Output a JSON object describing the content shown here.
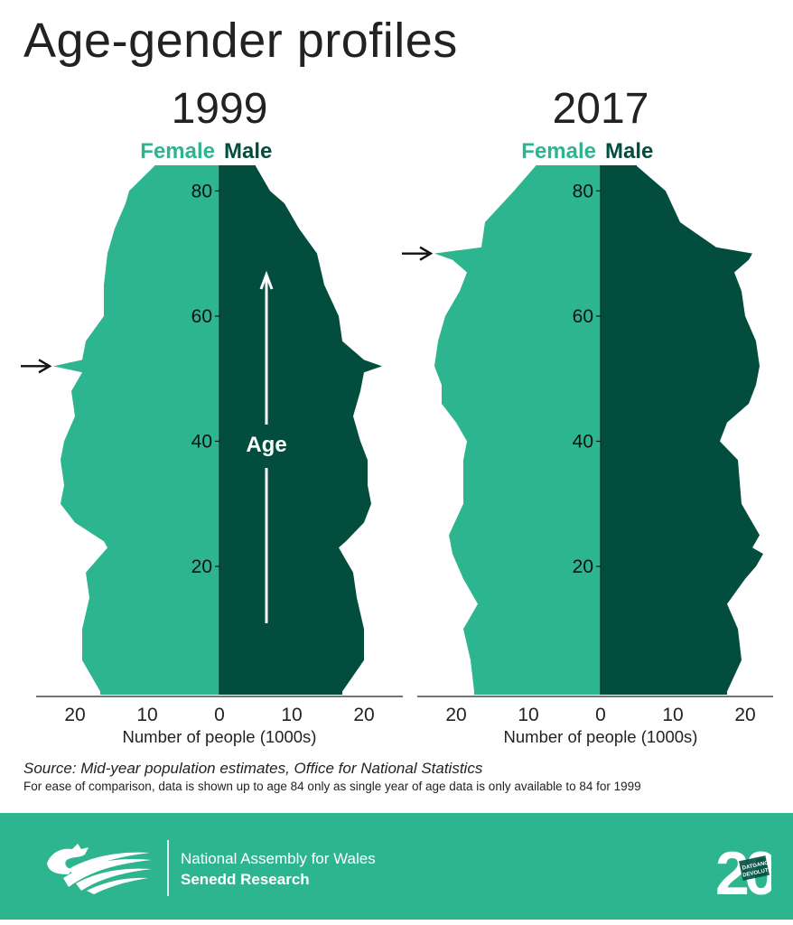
{
  "title": "Age-gender profiles",
  "colors": {
    "female": "#2db58f",
    "male": "#034d3f",
    "footer": "#2db58f",
    "text": "#222222"
  },
  "chart_data": [
    {
      "type": "bar",
      "orientation": "horizontal-population-pyramid",
      "title": "1999",
      "legend": [
        "Female",
        "Male"
      ],
      "xlabel": "Number of people (1000s)",
      "ylabel": "",
      "y_ticks": [
        "20",
        "40",
        "60",
        "80"
      ],
      "x_ticks": [
        "20",
        "10",
        "0",
        "10",
        "20"
      ],
      "xlim": [
        -25,
        25
      ],
      "ylim": [
        0,
        84
      ],
      "annotation": "Age",
      "marker_age": 52,
      "series": [
        {
          "name": "Female",
          "age": [
            0,
            5,
            10,
            15,
            19,
            23,
            24,
            27,
            30,
            33,
            37,
            40,
            44,
            48,
            51,
            52,
            53,
            56,
            60,
            65,
            70,
            74,
            78,
            80,
            84
          ],
          "values": [
            16.5,
            19,
            19,
            18,
            18.5,
            15.5,
            16,
            20,
            22,
            21.5,
            22,
            21.5,
            20,
            20.5,
            19,
            23,
            19,
            18.5,
            16,
            16,
            15.5,
            14.5,
            13,
            12.5,
            9
          ]
        },
        {
          "name": "Male",
          "age": [
            0,
            5,
            10,
            15,
            19,
            23,
            24,
            27,
            30,
            33,
            37,
            40,
            44,
            48,
            51,
            52,
            53,
            56,
            60,
            65,
            70,
            74,
            78,
            80,
            84
          ],
          "values": [
            17,
            20,
            20,
            19,
            18.5,
            16.5,
            17.5,
            20,
            21,
            20.5,
            20.5,
            19.5,
            18.5,
            19.5,
            20,
            22.5,
            20,
            17,
            16.5,
            14.5,
            13.5,
            11,
            9,
            7,
            5
          ]
        }
      ]
    },
    {
      "type": "bar",
      "orientation": "horizontal-population-pyramid",
      "title": "2017",
      "legend": [
        "Female",
        "Male"
      ],
      "xlabel": "Number of people (1000s)",
      "ylabel": "",
      "y_ticks": [
        "20",
        "40",
        "60",
        "80"
      ],
      "x_ticks": [
        "20",
        "10",
        "0",
        "10",
        "20"
      ],
      "xlim": [
        -25,
        25
      ],
      "ylim": [
        0,
        84
      ],
      "marker_age": 70,
      "series": [
        {
          "name": "Female",
          "age": [
            0,
            5,
            10,
            14,
            18,
            22,
            25,
            30,
            37,
            40,
            43,
            46,
            49,
            52,
            56,
            60,
            64,
            67,
            69,
            70,
            71,
            75,
            80,
            84
          ],
          "values": [
            17.5,
            18,
            19,
            17,
            19,
            20.5,
            21,
            19,
            19,
            18.5,
            20,
            22,
            22,
            23,
            22.5,
            21.5,
            19.5,
            18.5,
            20.5,
            23,
            16.5,
            16,
            12,
            9
          ]
        },
        {
          "name": "Male",
          "age": [
            0,
            5,
            10,
            14,
            18,
            20,
            22,
            23,
            25,
            30,
            37,
            40,
            43,
            46,
            49,
            52,
            56,
            60,
            64,
            67,
            69,
            70,
            71,
            75,
            80,
            84
          ],
          "values": [
            17.5,
            19.5,
            19,
            17.5,
            20,
            21.5,
            22.5,
            21,
            22,
            19.5,
            19,
            16.5,
            17.5,
            20.5,
            21.5,
            22,
            21.5,
            20,
            19.5,
            18.5,
            20.5,
            21,
            16,
            11,
            9,
            5
          ]
        }
      ]
    }
  ],
  "source": "Source: Mid-year population estimates, Office for National Statistics",
  "note": "For ease of comparison, data is shown up to age 84 only as single year of age data is only available to 84 for 1999",
  "footer": {
    "org_line1": "National Assembly for Wales",
    "org_line2": "Senedd Research",
    "badge_number": "20",
    "badge_text1": "DATGANOLI",
    "badge_text2": "DEVOLUTION",
    "logo_icon": "dragon-logo-icon"
  }
}
